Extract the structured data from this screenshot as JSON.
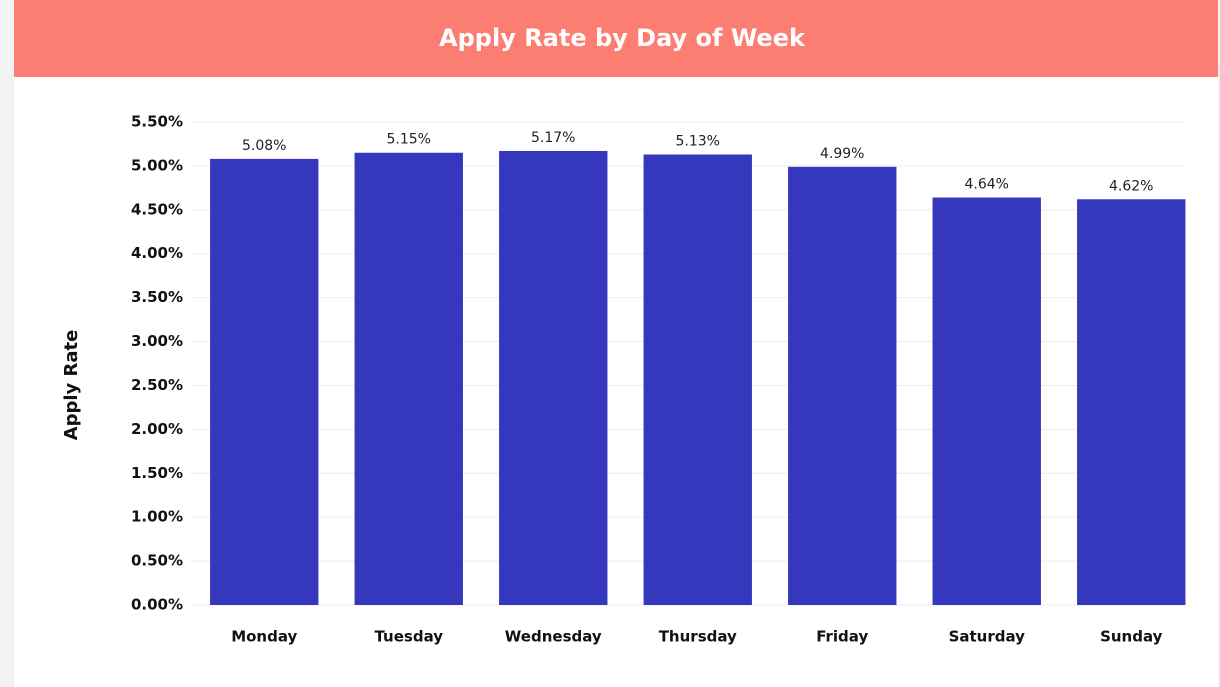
{
  "chart_data": {
    "type": "bar",
    "title": "Apply Rate by Day of Week",
    "y_label": "Apply Rate",
    "categories": [
      "Monday",
      "Tuesday",
      "Wednesday",
      "Thursday",
      "Friday",
      "Saturday",
      "Sunday"
    ],
    "values": [
      5.08,
      5.15,
      5.17,
      5.13,
      4.99,
      4.64,
      4.62
    ],
    "value_labels": [
      "5.08%",
      "5.15%",
      "5.17%",
      "5.13%",
      "4.99%",
      "4.64%",
      "4.62%"
    ],
    "color": "#3538bd",
    "ylim": [
      0,
      5.5
    ],
    "yticks": [
      {
        "value": 0,
        "label": "0.00%"
      },
      {
        "value": 0.5,
        "label": "0.50%"
      },
      {
        "value": 1,
        "label": "1.00%"
      },
      {
        "value": 1.5,
        "label": "1.50%"
      },
      {
        "value": 2,
        "label": "2.00%"
      },
      {
        "value": 2.5,
        "label": "2.50%"
      },
      {
        "value": 3,
        "label": "3.00%"
      },
      {
        "value": 3.5,
        "label": "3.50%"
      },
      {
        "value": 4,
        "label": "4.00%"
      },
      {
        "value": 4.5,
        "label": "4.50%"
      },
      {
        "value": 5,
        "label": "5.00%"
      },
      {
        "value": 5.5,
        "label": "5.50%"
      }
    ],
    "grid": true
  }
}
